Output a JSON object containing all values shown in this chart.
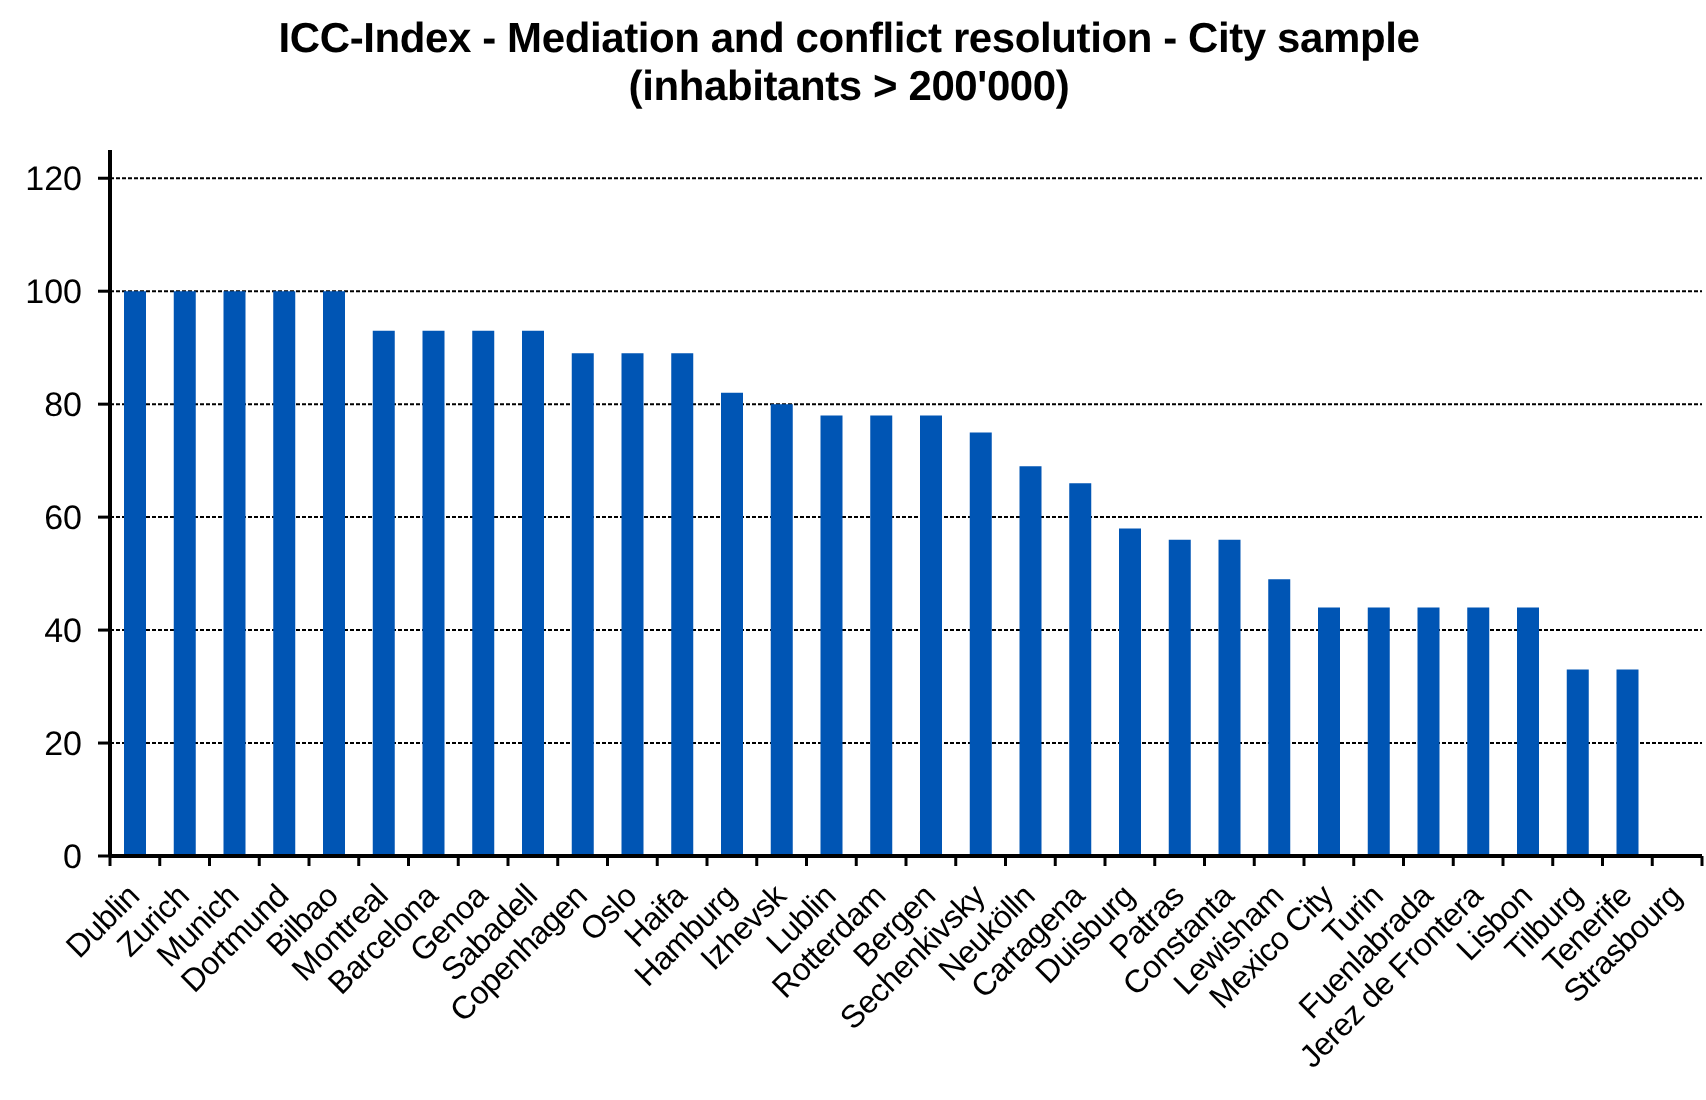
{
  "chart_data": {
    "type": "bar",
    "title": "ICC-Index - Mediation and conflict resolution - City sample",
    "subtitle": "(inhabitants > 200'000)",
    "categories": [
      "Dublin",
      "Zurich",
      "Munich",
      "Dortmund",
      "Bilbao",
      "Montreal",
      "Barcelona",
      "Genoa",
      "Sabadell",
      "Copenhagen",
      "Oslo",
      "Haifa",
      "Hamburg",
      "Izhevsk",
      "Lublin",
      "Rotterdam",
      "Bergen",
      "Sechenkivsky",
      "Neukölln",
      "Cartagena",
      "Duisburg",
      "Patras",
      "Constanta",
      "Lewisham",
      "Mexico City",
      "Turin",
      "Fuenlabrada",
      "Jerez de Frontera",
      "Lisbon",
      "Tilburg",
      "Tenerife",
      "Strasbourg"
    ],
    "values": [
      100,
      100,
      100,
      100,
      100,
      93,
      93,
      93,
      93,
      89,
      89,
      89,
      82,
      80,
      78,
      78,
      78,
      75,
      69,
      66,
      58,
      56,
      56,
      49,
      44,
      44,
      44,
      44,
      44,
      33,
      33,
      null
    ],
    "color": "#0055b4",
    "ylim": [
      0,
      125
    ],
    "yticks": [
      0,
      20,
      40,
      60,
      80,
      100,
      120
    ],
    "grid": "y"
  }
}
